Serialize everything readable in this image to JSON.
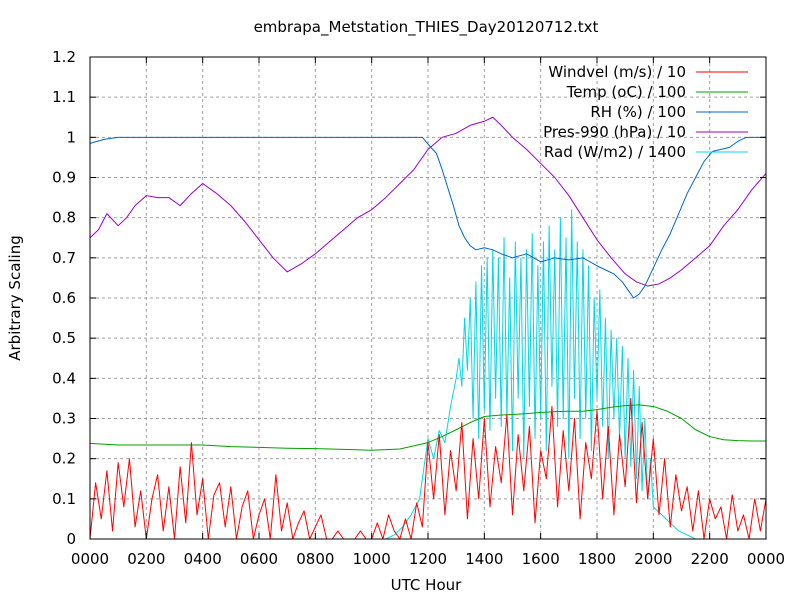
{
  "chart_data": {
    "type": "line",
    "title": "embrapa_Metstation_THIES_Day20120712.txt",
    "xlabel": "UTC Hour",
    "ylabel": "Arbitrary Scaling",
    "xlim": [
      0,
      24
    ],
    "ylim": [
      0,
      1.2
    ],
    "grid": true,
    "legend_position": "top-right",
    "x_ticks": [
      0,
      2,
      4,
      6,
      8,
      10,
      12,
      14,
      16,
      18,
      20,
      22,
      24
    ],
    "x_tick_labels": [
      "0000",
      "0200",
      "0400",
      "0600",
      "0800",
      "1000",
      "1200",
      "1400",
      "1600",
      "1800",
      "2000",
      "2200",
      "0000"
    ],
    "y_ticks": [
      0,
      0.1,
      0.2,
      0.3,
      0.4,
      0.5,
      0.6,
      0.7,
      0.8,
      0.9,
      1,
      1.1,
      1.2
    ],
    "y_tick_labels": [
      "0",
      "0.1",
      "0.2",
      "0.3",
      "0.4",
      "0.5",
      "0.6",
      "0.7",
      "0.8",
      "0.9",
      "1",
      "1.1",
      "1.2"
    ],
    "series": [
      {
        "name": "Windvel (m/s) / 10",
        "color": "#ff0000",
        "x": [
          0,
          0.2,
          0.4,
          0.6,
          0.8,
          1,
          1.2,
          1.4,
          1.6,
          1.8,
          2,
          2.2,
          2.4,
          2.6,
          2.8,
          3,
          3.2,
          3.4,
          3.6,
          3.8,
          4,
          4.2,
          4.4,
          4.6,
          4.8,
          5,
          5.2,
          5.4,
          5.6,
          5.8,
          6,
          6.2,
          6.4,
          6.6,
          6.8,
          7,
          7.2,
          7.4,
          7.6,
          7.8,
          8,
          8.2,
          8.4,
          8.6,
          8.8,
          9,
          9.2,
          9.4,
          9.6,
          9.8,
          10,
          10.2,
          10.4,
          10.6,
          10.8,
          11,
          11.2,
          11.4,
          11.6,
          11.8,
          12,
          12.2,
          12.4,
          12.6,
          12.8,
          13,
          13.2,
          13.4,
          13.6,
          13.8,
          14,
          14.2,
          14.4,
          14.6,
          14.8,
          15,
          15.2,
          15.4,
          15.6,
          15.8,
          16,
          16.2,
          16.4,
          16.6,
          16.8,
          17,
          17.2,
          17.4,
          17.6,
          17.8,
          18,
          18.2,
          18.4,
          18.6,
          18.8,
          19,
          19.2,
          19.4,
          19.6,
          19.8,
          20,
          20.2,
          20.4,
          20.6,
          20.8,
          21,
          21.2,
          21.4,
          21.6,
          21.8,
          22,
          22.2,
          22.4,
          22.6,
          22.8,
          23,
          23.2,
          23.4,
          23.6,
          23.8,
          24
        ],
        "y": [
          0,
          0.14,
          0.05,
          0.17,
          0.02,
          0.19,
          0.08,
          0.2,
          0.03,
          0.12,
          0,
          0.1,
          0.16,
          0.02,
          0.13,
          0,
          0.18,
          0.04,
          0.24,
          0.06,
          0.15,
          0,
          0.11,
          0.14,
          0.03,
          0.13,
          0,
          0.08,
          0.12,
          0,
          0.06,
          0.1,
          0,
          0.16,
          0.02,
          0.09,
          0,
          0.04,
          0.07,
          0,
          0.03,
          0.06,
          0,
          0,
          0.02,
          0,
          0,
          0,
          0.02,
          0,
          0,
          0.04,
          0,
          0.06,
          0.02,
          0,
          0.05,
          0,
          0.09,
          0.03,
          0.24,
          0.1,
          0.26,
          0.06,
          0.22,
          0.12,
          0.29,
          0.05,
          0.25,
          0.1,
          0.3,
          0.08,
          0.23,
          0.14,
          0.31,
          0.06,
          0.26,
          0.12,
          0.28,
          0.04,
          0.22,
          0.15,
          0.33,
          0.08,
          0.27,
          0.12,
          0.3,
          0.05,
          0.24,
          0.15,
          0.32,
          0.1,
          0.28,
          0.06,
          0.26,
          0.13,
          0.35,
          0.09,
          0.29,
          0.1,
          0.25,
          0.06,
          0.2,
          0.03,
          0.16,
          0.07,
          0.13,
          0.02,
          0.12,
          0,
          0.1,
          0.05,
          0.08,
          0,
          0.11,
          0.02,
          0.06,
          0,
          0.1,
          0.02,
          0.1
        ]
      },
      {
        "name": "Temp (oC) / 100",
        "color": "#00a000",
        "x": [
          0,
          1,
          2,
          3,
          4,
          5,
          6,
          7,
          8,
          9,
          10,
          11,
          12,
          12.5,
          13,
          13.5,
          14,
          14.5,
          15,
          15.5,
          16,
          16.5,
          17,
          17.5,
          18,
          18.5,
          19,
          19.5,
          20,
          20.5,
          21,
          21.5,
          22,
          22.5,
          23,
          23.5,
          24
        ],
        "y": [
          0.238,
          0.234,
          0.234,
          0.234,
          0.234,
          0.23,
          0.228,
          0.226,
          0.225,
          0.223,
          0.221,
          0.224,
          0.24,
          0.255,
          0.272,
          0.29,
          0.305,
          0.308,
          0.31,
          0.312,
          0.315,
          0.317,
          0.318,
          0.318,
          0.322,
          0.328,
          0.332,
          0.334,
          0.33,
          0.318,
          0.3,
          0.272,
          0.255,
          0.247,
          0.245,
          0.244,
          0.244
        ]
      },
      {
        "name": "RH (%) / 100",
        "color": "#0066cc",
        "x": [
          0,
          0.5,
          1,
          2,
          4,
          6,
          8,
          10,
          11,
          11.8,
          12.1,
          12.3,
          12.5,
          12.7,
          12.9,
          13.1,
          13.3,
          13.5,
          13.7,
          14,
          14.3,
          14.6,
          15,
          15.5,
          16,
          16.5,
          17,
          17.5,
          18,
          18.3,
          18.6,
          18.9,
          19.1,
          19.3,
          19.5,
          19.7,
          19.9,
          20.1,
          20.3,
          20.6,
          20.9,
          21.2,
          21.5,
          21.8,
          22.1,
          22.4,
          22.7,
          23,
          23.3,
          23.6,
          24
        ],
        "y": [
          0.985,
          0.995,
          1,
          1,
          1,
          1,
          1,
          1,
          1,
          1,
          0.975,
          0.96,
          0.92,
          0.875,
          0.83,
          0.78,
          0.75,
          0.73,
          0.72,
          0.725,
          0.72,
          0.71,
          0.7,
          0.71,
          0.69,
          0.7,
          0.695,
          0.7,
          0.68,
          0.67,
          0.66,
          0.64,
          0.62,
          0.6,
          0.61,
          0.63,
          0.66,
          0.69,
          0.72,
          0.76,
          0.81,
          0.86,
          0.9,
          0.94,
          0.965,
          0.97,
          0.975,
          0.99,
          1,
          1,
          1
        ]
      },
      {
        "name": "Pres-990 (hPa) / 10",
        "color": "#9900cc",
        "x": [
          0,
          0.3,
          0.6,
          1,
          1.3,
          1.6,
          2,
          2.4,
          2.8,
          3.2,
          3.6,
          4,
          4.5,
          5,
          5.5,
          6,
          6.5,
          7,
          7.5,
          8,
          8.5,
          9,
          9.5,
          10,
          10.5,
          11,
          11.5,
          12,
          12.5,
          13,
          13.5,
          14,
          14.3,
          14.6,
          15,
          15.5,
          16,
          16.5,
          17,
          17.5,
          18,
          18.5,
          19,
          19.4,
          19.8,
          20.2,
          20.6,
          21,
          21.5,
          22,
          22.5,
          23,
          23.5,
          24
        ],
        "y": [
          0.75,
          0.77,
          0.81,
          0.78,
          0.8,
          0.83,
          0.855,
          0.85,
          0.85,
          0.83,
          0.86,
          0.885,
          0.86,
          0.83,
          0.79,
          0.745,
          0.7,
          0.665,
          0.685,
          0.71,
          0.74,
          0.77,
          0.8,
          0.82,
          0.85,
          0.885,
          0.92,
          0.97,
          1,
          1.01,
          1.03,
          1.04,
          1.05,
          1.03,
          1,
          0.97,
          0.935,
          0.9,
          0.855,
          0.8,
          0.745,
          0.7,
          0.66,
          0.64,
          0.63,
          0.635,
          0.65,
          0.67,
          0.7,
          0.73,
          0.78,
          0.82,
          0.87,
          0.91
        ]
      },
      {
        "name": "Rad (W/m2) / 1400",
        "color": "#00d8e8",
        "x": [
          0,
          10.5,
          10.8,
          11.1,
          11.4,
          11.7,
          12,
          12.2,
          12.4,
          12.6,
          12.8,
          13,
          13.1,
          13.2,
          13.3,
          13.4,
          13.5,
          13.6,
          13.7,
          13.8,
          13.9,
          14,
          14.1,
          14.2,
          14.3,
          14.4,
          14.5,
          14.6,
          14.7,
          14.8,
          14.9,
          15,
          15.1,
          15.2,
          15.3,
          15.4,
          15.5,
          15.6,
          15.7,
          15.8,
          15.9,
          16,
          16.1,
          16.2,
          16.3,
          16.4,
          16.5,
          16.6,
          16.7,
          16.8,
          16.9,
          17,
          17.1,
          17.2,
          17.3,
          17.4,
          17.5,
          17.6,
          17.7,
          17.8,
          17.9,
          18,
          18.1,
          18.2,
          18.3,
          18.4,
          18.5,
          18.6,
          18.7,
          18.8,
          18.9,
          19,
          19.1,
          19.2,
          19.3,
          19.4,
          19.5,
          19.6,
          19.7,
          19.8,
          19.9,
          20,
          20.3,
          20.6,
          20.9,
          21.2,
          21.5,
          24
        ],
        "y": [
          0,
          0,
          0.01,
          0.03,
          0.06,
          0.1,
          0.25,
          0.2,
          0.27,
          0.24,
          0.33,
          0.4,
          0.45,
          0.38,
          0.55,
          0.42,
          0.6,
          0.3,
          0.64,
          0.25,
          0.68,
          0.32,
          0.7,
          0.27,
          0.72,
          0.35,
          0.7,
          0.28,
          0.75,
          0.3,
          0.65,
          0.22,
          0.74,
          0.35,
          0.7,
          0.2,
          0.72,
          0.33,
          0.76,
          0.25,
          0.68,
          0.3,
          0.74,
          0.22,
          0.78,
          0.38,
          0.72,
          0.28,
          0.8,
          0.3,
          0.75,
          0.2,
          0.82,
          0.35,
          0.74,
          0.25,
          0.72,
          0.3,
          0.68,
          0.22,
          0.6,
          0.35,
          0.62,
          0.28,
          0.55,
          0.2,
          0.52,
          0.3,
          0.5,
          0.25,
          0.48,
          0.2,
          0.45,
          0.18,
          0.42,
          0.15,
          0.38,
          0.12,
          0.3,
          0.1,
          0.2,
          0.08,
          0.06,
          0.04,
          0.02,
          0.01,
          0,
          0
        ]
      }
    ]
  }
}
